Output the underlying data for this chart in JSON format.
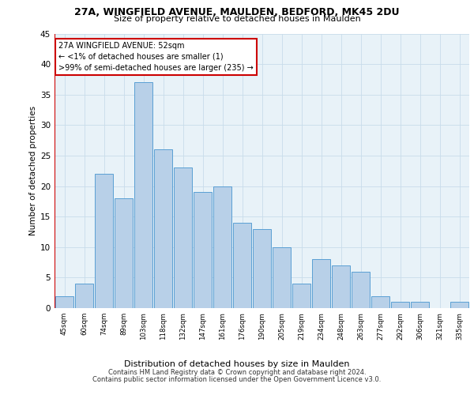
{
  "title1": "27A, WINGFIELD AVENUE, MAULDEN, BEDFORD, MK45 2DU",
  "title2": "Size of property relative to detached houses in Maulden",
  "xlabel": "Distribution of detached houses by size in Maulden",
  "ylabel": "Number of detached properties",
  "categories": [
    "45sqm",
    "60sqm",
    "74sqm",
    "89sqm",
    "103sqm",
    "118sqm",
    "132sqm",
    "147sqm",
    "161sqm",
    "176sqm",
    "190sqm",
    "205sqm",
    "219sqm",
    "234sqm",
    "248sqm",
    "263sqm",
    "277sqm",
    "292sqm",
    "306sqm",
    "321sqm",
    "335sqm"
  ],
  "values": [
    2,
    4,
    22,
    18,
    37,
    26,
    23,
    19,
    20,
    14,
    13,
    10,
    4,
    8,
    7,
    6,
    2,
    1,
    1,
    0,
    1
  ],
  "bar_color": "#b8d0e8",
  "bar_edge_color": "#5a9fd4",
  "highlight_color": "#cc0000",
  "ylim": [
    0,
    45
  ],
  "yticks": [
    0,
    5,
    10,
    15,
    20,
    25,
    30,
    35,
    40,
    45
  ],
  "grid_color": "#c8dcea",
  "bg_color": "#e8f2f8",
  "annotation_text": "27A WINGFIELD AVENUE: 52sqm\n← <1% of detached houses are smaller (1)\n>99% of semi-detached houses are larger (235) →",
  "footer1": "Contains HM Land Registry data © Crown copyright and database right 2024.",
  "footer2": "Contains public sector information licensed under the Open Government Licence v3.0."
}
